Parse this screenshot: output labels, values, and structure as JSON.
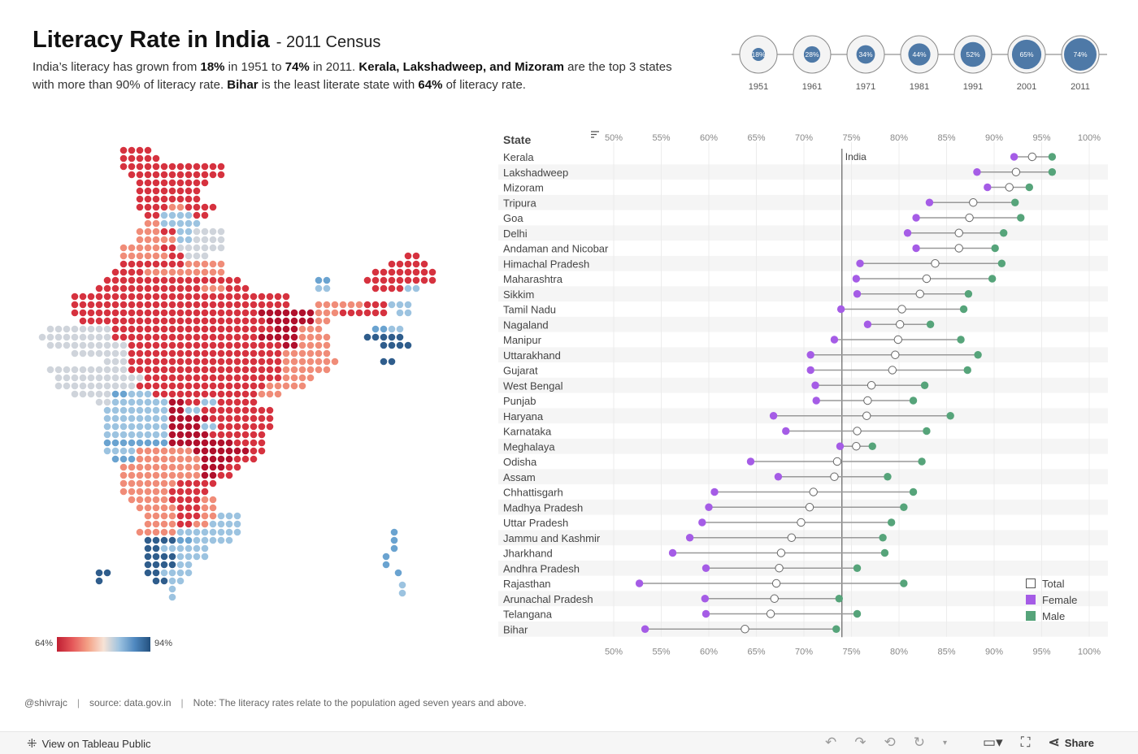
{
  "header": {
    "title": "Literacy Rate in India",
    "subtitle": "- 2011 Census",
    "desc": [
      {
        "t": "India’s literacy has grown from ",
        "b": false
      },
      {
        "t": "18%",
        "b": true
      },
      {
        "t": " in 1951 to ",
        "b": false
      },
      {
        "t": "74%",
        "b": true
      },
      {
        "t": " in 2011. ",
        "b": false
      },
      {
        "t": "Kerala, Lakshadweep, and Mizoram",
        "b": true
      },
      {
        "t": " are the top 3 states with more than 90%  of literacy rate. ",
        "b": false
      },
      {
        "t": "Bihar",
        "b": true
      },
      {
        "t": " is the least literate state with ",
        "b": false
      },
      {
        "t": "64%",
        "b": true
      },
      {
        "t": " of literacy rate.",
        "b": false
      }
    ]
  },
  "timeline": [
    {
      "year": "1951",
      "label": "18%",
      "value": 18
    },
    {
      "year": "1961",
      "label": "28%",
      "value": 28
    },
    {
      "year": "1971",
      "label": "34%",
      "value": 34
    },
    {
      "year": "1981",
      "label": "44%",
      "value": 44
    },
    {
      "year": "1991",
      "label": "52%",
      "value": 52
    },
    {
      "year": "2001",
      "label": "65%",
      "value": 65
    },
    {
      "year": "2011",
      "label": "74%",
      "value": 74
    }
  ],
  "map_legend": {
    "min_label": "64%",
    "max_label": "94%"
  },
  "chart_data": {
    "type": "dumbbell",
    "column_header": "State",
    "reference_line": {
      "label": "India",
      "value": 74
    },
    "x_ticks": [
      "50%",
      "55%",
      "60%",
      "65%",
      "70%",
      "75%",
      "80%",
      "85%",
      "90%",
      "95%",
      "100%"
    ],
    "xlim": [
      50,
      100
    ],
    "series": [
      {
        "name": "Total"
      },
      {
        "name": "Female"
      },
      {
        "name": "Male"
      }
    ],
    "colors": {
      "Total": "#ffffff",
      "Female": "#a55ce6",
      "Male": "#56a47a"
    },
    "rows": [
      {
        "state": "Kerala",
        "female": 92.1,
        "total": 94.0,
        "male": 96.1
      },
      {
        "state": "Lakshadweep",
        "female": 88.2,
        "total": 92.3,
        "male": 96.1
      },
      {
        "state": "Mizoram",
        "female": 89.3,
        "total": 91.6,
        "male": 93.7
      },
      {
        "state": "Tripura",
        "female": 83.2,
        "total": 87.8,
        "male": 92.2
      },
      {
        "state": "Goa",
        "female": 81.8,
        "total": 87.4,
        "male": 92.8
      },
      {
        "state": "Delhi",
        "female": 80.9,
        "total": 86.3,
        "male": 91.0
      },
      {
        "state": "Andaman and Nicobar",
        "female": 81.8,
        "total": 86.3,
        "male": 90.1
      },
      {
        "state": "Himachal Pradesh",
        "female": 75.9,
        "total": 83.8,
        "male": 90.8
      },
      {
        "state": "Maharashtra",
        "female": 75.5,
        "total": 82.9,
        "male": 89.8
      },
      {
        "state": "Sikkim",
        "female": 75.6,
        "total": 82.2,
        "male": 87.3
      },
      {
        "state": "Tamil Nadu",
        "female": 73.9,
        "total": 80.3,
        "male": 86.8
      },
      {
        "state": "Nagaland",
        "female": 76.7,
        "total": 80.1,
        "male": 83.3
      },
      {
        "state": "Manipur",
        "female": 73.2,
        "total": 79.9,
        "male": 86.5
      },
      {
        "state": "Uttarakhand",
        "female": 70.7,
        "total": 79.6,
        "male": 88.3
      },
      {
        "state": "Gujarat",
        "female": 70.7,
        "total": 79.3,
        "male": 87.2
      },
      {
        "state": "West Bengal",
        "female": 71.2,
        "total": 77.1,
        "male": 82.7
      },
      {
        "state": "Punjab",
        "female": 71.3,
        "total": 76.7,
        "male": 81.5
      },
      {
        "state": "Haryana",
        "female": 66.8,
        "total": 76.6,
        "male": 85.4
      },
      {
        "state": "Karnataka",
        "female": 68.1,
        "total": 75.6,
        "male": 82.9
      },
      {
        "state": "Meghalaya",
        "female": 73.8,
        "total": 75.5,
        "male": 77.2
      },
      {
        "state": "Odisha",
        "female": 64.4,
        "total": 73.5,
        "male": 82.4
      },
      {
        "state": "Assam",
        "female": 67.3,
        "total": 73.2,
        "male": 78.8
      },
      {
        "state": "Chhattisgarh",
        "female": 60.6,
        "total": 71.0,
        "male": 81.5
      },
      {
        "state": "Madhya Pradesh",
        "female": 60.0,
        "total": 70.6,
        "male": 80.5
      },
      {
        "state": "Uttar Pradesh",
        "female": 59.3,
        "total": 69.7,
        "male": 79.2
      },
      {
        "state": "Jammu and Kashmir",
        "female": 58.0,
        "total": 68.7,
        "male": 78.3
      },
      {
        "state": "Jharkhand",
        "female": 56.2,
        "total": 67.6,
        "male": 78.5
      },
      {
        "state": "Andhra Pradesh",
        "female": 59.7,
        "total": 67.4,
        "male": 75.6
      },
      {
        "state": "Rajasthan",
        "female": 52.7,
        "total": 67.1,
        "male": 80.5
      },
      {
        "state": "Arunachal Pradesh",
        "female": 59.6,
        "total": 66.9,
        "male": 73.7
      },
      {
        "state": "Telangana",
        "female": 59.7,
        "total": 66.5,
        "male": 75.6
      },
      {
        "state": "Bihar",
        "female": 53.3,
        "total": 63.8,
        "male": 73.4
      }
    ]
  },
  "footer": {
    "author": "@shivrajc",
    "source": "source: data.gov.in",
    "note": "Note: The literacy rates relate to the population aged seven years and above."
  },
  "toolbar": {
    "view_label": "View on Tableau Public",
    "share_label": "Share"
  }
}
